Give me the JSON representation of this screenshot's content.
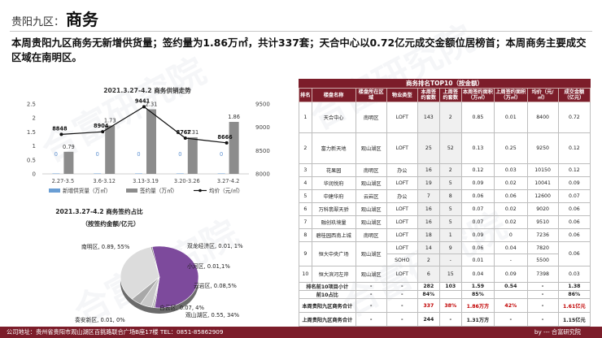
{
  "header": {
    "region": "贵阳九区：",
    "topic": "商务"
  },
  "summary": "本周贵阳九区商务无新增供货量；签约量为1.86万㎡，共计337套；天合中心以0.72亿元成交金额位居榜首；本周商务主要成交区域在南明区。",
  "watermark": "合富研究院",
  "chart_data": [
    {
      "type": "bar",
      "title": "2021.3.27-4.2   商务供销走势",
      "categories": [
        "2.27-3.5",
        "3.6-3.12",
        "3.13-3.19",
        "3.20-3.26",
        "3.27-4.2"
      ],
      "series": [
        {
          "name": "新增供货量（万㎡）",
          "values": [
            0,
            0,
            0,
            0,
            0
          ],
          "color": "#6a9ed4"
        },
        {
          "name": "签约量（万㎡）",
          "values": [
            0.79,
            1.73,
            2.31,
            1.31,
            1.86
          ],
          "color": "#8c8c8c"
        },
        {
          "name": "均价（元/㎡）",
          "type": "line",
          "axis": "right",
          "values": [
            8848,
            8904,
            9441,
            8767,
            8666
          ],
          "color": "#111111"
        }
      ],
      "y_left": {
        "ylim": [
          0,
          2.5
        ],
        "ticks": [
          "0",
          "0.5",
          "1",
          "1.5",
          "2",
          "2.5"
        ]
      },
      "y_right": {
        "ylim": [
          8000,
          9500
        ],
        "ticks": [
          "8000",
          "8500",
          "9000",
          "9500"
        ]
      },
      "zero_labels": [
        "0",
        "0",
        "0",
        "0",
        "0"
      ]
    },
    {
      "type": "pie",
      "title": "2021.3.27-4.2   商务签约占比",
      "subtitle": "（按签约金额/亿元）",
      "slices": [
        {
          "name": "南明区",
          "value": 0.89,
          "label": "南明区, 0.89, 55%",
          "color": "#7d4a9c"
        },
        {
          "name": "双龙经济区",
          "value": 0.01,
          "label": "双龙经济区, 0.01, 1%",
          "color": "#9a9a9a"
        },
        {
          "name": "小河区",
          "value": 0.01,
          "label": "小河区, 0.01,1%",
          "color": "#b0b0b0"
        },
        {
          "name": "云岩区",
          "value": 0.08,
          "label": "云岩区, 0.08,5%",
          "color": "#c8c8c8"
        },
        {
          "name": "白云区",
          "value": 0.07,
          "label": "白云区, 0.07, 4%",
          "color": "#a8a8a8"
        },
        {
          "name": "观山湖区",
          "value": 0.55,
          "label": "观山湖区, 0.55, 34%",
          "color": "#dcdcdc"
        },
        {
          "name": "奏安新区",
          "value": 0.01,
          "label": "奏安新区, 0.01, 0%",
          "color": "#888888"
        }
      ]
    }
  ],
  "ranking": {
    "title": "商务排名TOP10（按金额）",
    "headers": [
      "排名",
      "楼盘名称",
      "楼盘所在区域",
      "物业类型",
      "本周签约套数",
      "上周签约套数",
      "本周签约面积（万㎡）",
      "上周签约面积（万㎡）",
      "均价（元/㎡）",
      "成交金额（亿元）"
    ],
    "rows": [
      {
        "rank": "1",
        "name": "天合中心",
        "area": "南明区",
        "type": "LOFT",
        "week_sets": "143",
        "last_sets": "2",
        "week_area": "0.85",
        "last_area": "0.01",
        "price": "8400",
        "amount": "0.72",
        "tall": true
      },
      {
        "rank": "2",
        "name": "富力新天地",
        "area": "观山湖区",
        "type": "LOFT",
        "week_sets": "25",
        "last_sets": "52",
        "week_area": "0.13",
        "last_area": "0.25",
        "price": "9250",
        "amount": "0.12",
        "tall": true
      },
      {
        "rank": "3",
        "name": "花果园",
        "area": "南明区",
        "type": "办公",
        "week_sets": "16",
        "last_sets": "2",
        "week_area": "0.12",
        "last_area": "0.03",
        "price": "10150",
        "amount": "0.12"
      },
      {
        "rank": "4",
        "name": "华润悦府",
        "area": "观山湖区",
        "type": "LOFT",
        "week_sets": "19",
        "last_sets": "5",
        "week_area": "0.09",
        "last_area": "0.02",
        "price": "10041",
        "amount": "0.09"
      },
      {
        "rank": "5",
        "name": "中建华府",
        "area": "云岩区",
        "type": "办公",
        "week_sets": "7",
        "last_sets": "8",
        "week_area": "0.06",
        "last_area": "0.06",
        "price": "12600",
        "amount": "0.07"
      },
      {
        "rank": "6",
        "name": "万科翡翠天骄",
        "area": "观山湖区",
        "type": "LOFT",
        "week_sets": "16",
        "last_sets": "5",
        "week_area": "0.07",
        "last_area": "0.02",
        "price": "9020",
        "amount": "0.06"
      },
      {
        "rank": "7",
        "name": "融创玖境量",
        "area": "观山湖区",
        "type": "LOFT",
        "week_sets": "16",
        "last_sets": "5",
        "week_area": "0.07",
        "last_area": "0.02",
        "price": "9510",
        "amount": "0.06"
      },
      {
        "rank": "8",
        "name": "碧桂园西南上城",
        "area": "南明区",
        "type": "LOFT",
        "week_sets": "18",
        "last_sets": "1",
        "week_area": "0.09",
        "last_area": "0",
        "price": "7236",
        "amount": "0.06"
      }
    ],
    "row9": {
      "rank": "9",
      "name": "恒大中央广场",
      "area": "观山湖区",
      "sub": [
        {
          "type": "LOFT",
          "week_sets": "14",
          "last_sets": "9",
          "week_area": "0.06",
          "last_area": "0.04",
          "price": "7820"
        },
        {
          "type": "SOHO",
          "week_sets": "2",
          "last_sets": "-",
          "week_area": "0.01",
          "last_area": "-",
          "price": "5500"
        }
      ],
      "amount": "0.06"
    },
    "row10": {
      "rank": "10",
      "name": "恒大滨河左岸",
      "area": "观山湖区",
      "type": "LOFT",
      "week_sets": "6",
      "last_sets": "15",
      "week_area": "0.04",
      "last_area": "0.09",
      "price": "7398",
      "amount": "0.03"
    },
    "summary_rows": [
      {
        "label": "排名前10项目小计",
        "area": "-",
        "type": "-",
        "week_sets": "282",
        "last_sets": "103",
        "week_area": "1.59",
        "last_area": "0.54",
        "price": "-",
        "amount": "1.38",
        "red": []
      },
      {
        "label": "前10占比",
        "area": "-",
        "type": "-",
        "week_sets": "84%",
        "last_sets": "",
        "week_area": "85%",
        "last_area": "",
        "price": "-",
        "amount": "86%",
        "red": []
      },
      {
        "label": "本周贵阳九区商务合计",
        "area": "-",
        "type": "-",
        "week_sets": "337",
        "last_sets": "38%",
        "week_area": "1.86万方",
        "last_area": "42%",
        "price": "-",
        "amount": "1.61亿元",
        "red": [
          "week_sets",
          "last_sets",
          "week_area",
          "last_area",
          "amount"
        ]
      },
      {
        "label": "上周贵阳九区商务合计",
        "area": "-",
        "type": "-",
        "week_sets": "244",
        "last_sets": "-",
        "week_area": "1.31万方",
        "last_area": "-",
        "price": "-",
        "amount": "1.15亿元",
        "red": []
      }
    ]
  },
  "footer": {
    "address": "公司地址：贵州省贵阳市观山湖区百挑路联合广场B座17楼    TEL：0851-85862909",
    "brand": "by --- 合富研究院"
  }
}
